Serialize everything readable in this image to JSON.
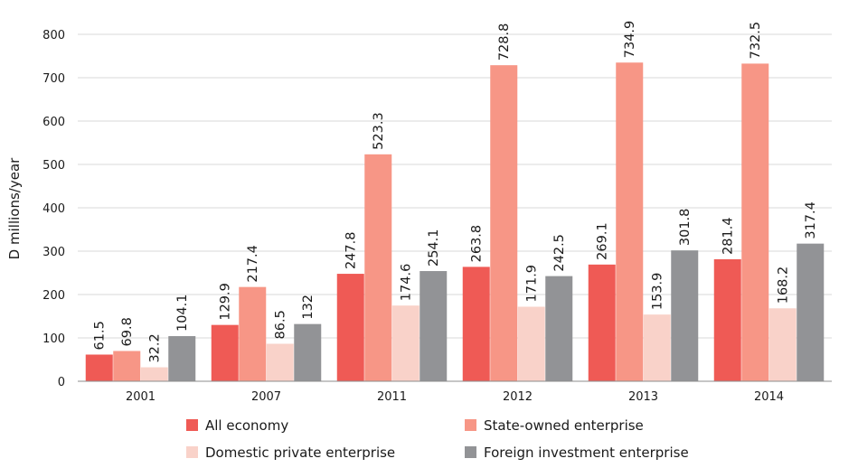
{
  "chart_data": {
    "type": "bar",
    "ylabel": "D millions/year",
    "ylim": [
      0,
      800
    ],
    "yticks": [
      "0",
      "100",
      "200",
      "300",
      "400",
      "500",
      "600",
      "700",
      "800"
    ],
    "grid": true,
    "legend_position": "bottom",
    "categories": [
      "2001",
      "2007",
      "2011",
      "2012",
      "2013",
      "2014"
    ],
    "series": [
      {
        "name": "All economy",
        "color": "#ef5a55",
        "values": [
          61.5,
          129.9,
          247.8,
          263.8,
          269.1,
          281.4
        ],
        "labels": [
          "61.5",
          "129.9",
          "247.8",
          "263.8",
          "269.1",
          "281.4"
        ]
      },
      {
        "name": "State-owned enterprise",
        "color": "#f79686",
        "values": [
          69.8,
          217.4,
          523.3,
          728.8,
          734.9,
          732.5
        ],
        "labels": [
          "69.8",
          "217.4",
          "523.3",
          "728.8",
          "734.9",
          "732.5"
        ]
      },
      {
        "name": "Domestic private enterprise",
        "color": "#f9d2c9",
        "values": [
          32.2,
          86.5,
          174.6,
          171.9,
          153.9,
          168.2
        ],
        "labels": [
          "32.2",
          "86.5",
          "174.6",
          "171.9",
          "153.9",
          "168.2"
        ]
      },
      {
        "name": "Foreign investment enterprise",
        "color": "#929396",
        "values": [
          104.1,
          132,
          254.1,
          242.5,
          301.8,
          317.4
        ],
        "labels": [
          "104.1",
          "132",
          "254.1",
          "242.5",
          "301.8",
          "317.4"
        ]
      }
    ]
  }
}
